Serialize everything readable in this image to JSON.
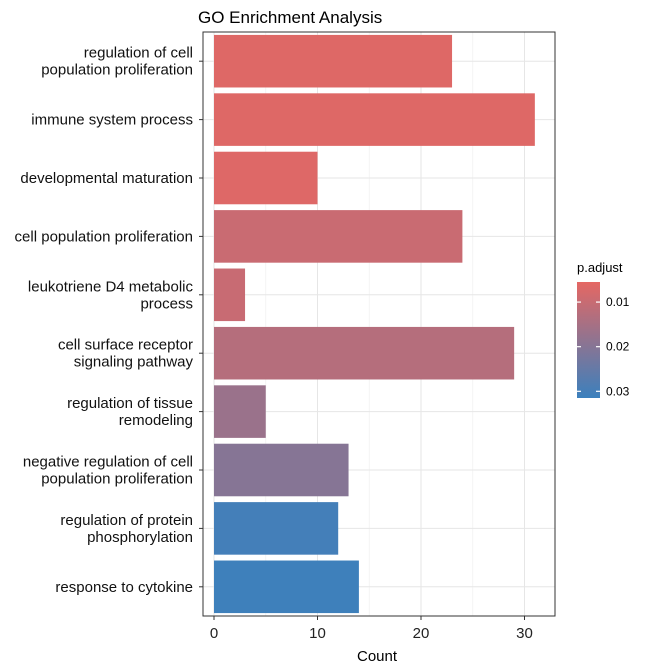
{
  "chart_data": {
    "type": "bar",
    "orientation": "horizontal",
    "title": "GO Enrichment Analysis",
    "xlabel": "Count",
    "ylabel": "",
    "xlim": [
      0,
      32
    ],
    "x_ticks": [
      0,
      10,
      20,
      30
    ],
    "grid": true,
    "categories": [
      [
        "regulation of cell",
        "population proliferation"
      ],
      [
        "immune system process"
      ],
      [
        "developmental maturation"
      ],
      [
        "cell population proliferation"
      ],
      [
        "leukotriene D4 metabolic",
        "process"
      ],
      [
        "cell surface receptor",
        "signaling pathway"
      ],
      [
        "regulation of tissue",
        "remodeling"
      ],
      [
        "negative regulation of cell",
        "population proliferation"
      ],
      [
        "regulation of protein",
        "phosphorylation"
      ],
      [
        "response to cytokine"
      ]
    ],
    "values": [
      23,
      31,
      10,
      24,
      3,
      29,
      5,
      13,
      12,
      14
    ],
    "p_adjust": [
      0.0065,
      0.0065,
      0.0066,
      0.0098,
      0.01,
      0.0128,
      0.017,
      0.02,
      0.0302,
      0.031
    ],
    "color_scale": {
      "title": "p.adjust",
      "ticks": [
        "0.01",
        "0.02",
        "0.03"
      ],
      "tick_values": [
        0.01,
        0.02,
        0.03
      ],
      "range": [
        0.0055,
        0.0315
      ],
      "low_color": "#e56763",
      "high_color": "#3b80bd"
    },
    "legend_position": "right"
  }
}
